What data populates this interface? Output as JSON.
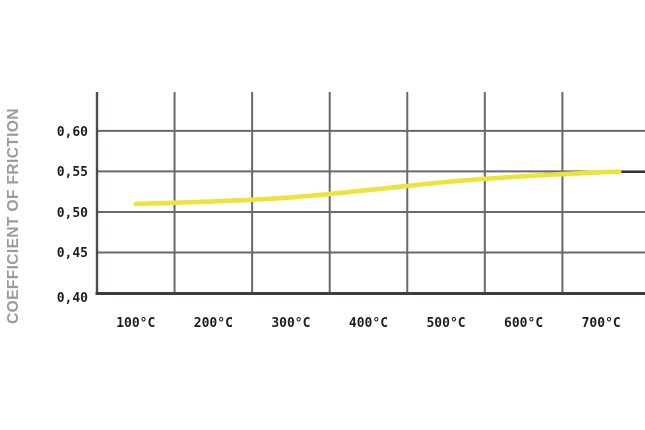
{
  "chart_data": {
    "type": "line",
    "title": "",
    "xlabel": "",
    "ylabel": "COEFFICIENT OF FRICTION",
    "categories": [
      "100°C",
      "200°C",
      "300°C",
      "400°C",
      "500°C",
      "600°C",
      "700°C"
    ],
    "series": [
      {
        "name": "coefficient of friction",
        "color": "#ece33c",
        "values": [
          0.51,
          0.513,
          0.518,
          0.527,
          0.537,
          0.544,
          0.549
        ]
      }
    ],
    "y_ticks": [
      {
        "value": 0.6,
        "label": "0,60"
      },
      {
        "value": 0.55,
        "label": "0,55"
      },
      {
        "value": 0.5,
        "label": "0,50"
      },
      {
        "value": 0.45,
        "label": "0,45"
      },
      {
        "value": 0.4,
        "label": "0,40"
      }
    ],
    "ylim": [
      0.4,
      0.648
    ],
    "grid": "on",
    "legend": "none",
    "decimal_separator": ",",
    "colors": {
      "series_line": "#ece33c",
      "grid_line": "#67696d",
      "axis_line": "#3b3e43",
      "line_end_dark_segment": "#2f3338",
      "tick_text": "#1e1e1e",
      "y_title_text": "#9b9b9b",
      "background": "#ffffff"
    }
  }
}
